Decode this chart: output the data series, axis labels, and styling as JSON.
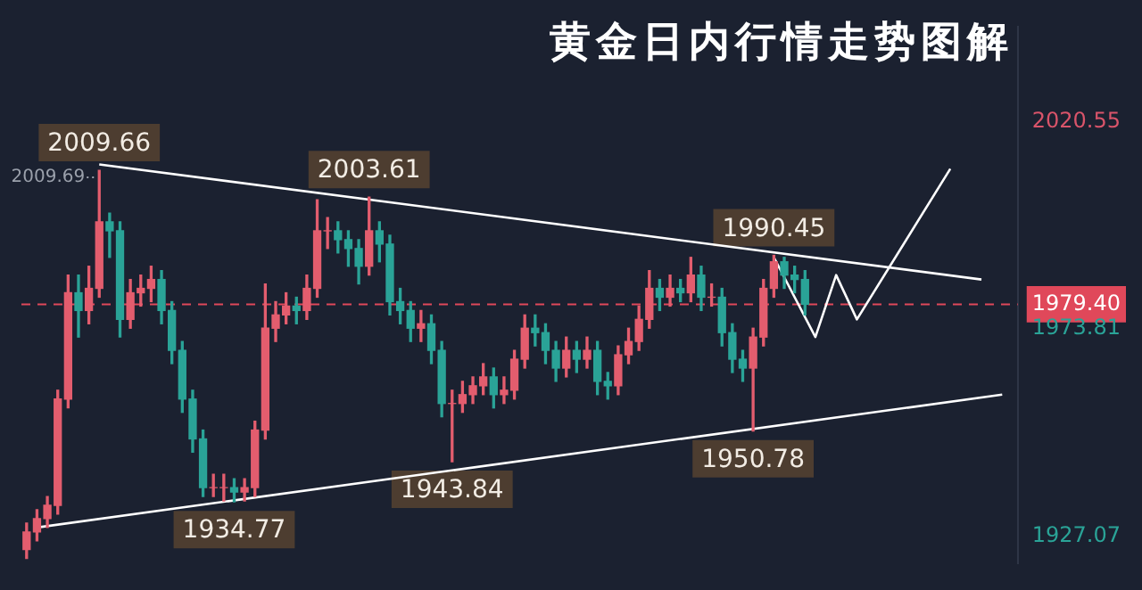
{
  "chart_data": {
    "type": "candlestick",
    "title": "黄金日内行情走势图解",
    "categories": [
      null,
      null,
      null,
      null,
      null,
      null,
      null,
      null,
      null,
      null,
      null,
      null,
      null,
      null,
      null,
      null,
      null,
      null,
      null,
      null,
      null,
      null,
      null,
      null,
      null,
      null,
      null,
      null,
      null,
      null,
      null,
      null,
      null,
      null,
      null,
      null,
      null,
      null,
      null,
      null,
      null,
      null,
      null,
      null,
      null,
      null,
      null,
      null,
      null,
      null,
      null,
      null,
      null,
      null,
      null,
      null,
      null,
      null,
      null,
      null,
      null,
      null,
      null,
      null,
      null,
      null,
      null,
      null,
      null,
      null,
      null,
      null,
      null,
      null,
      null,
      null,
      null,
      null,
      null,
      null,
      null,
      null,
      null,
      null,
      null,
      null,
      null,
      null,
      null,
      null,
      null,
      null,
      null,
      null,
      null,
      null
    ],
    "ohlc": [
      [
        1924,
        1930,
        1922,
        1928
      ],
      [
        1928,
        1933,
        1926,
        1931
      ],
      [
        1931,
        1936,
        1929,
        1934
      ],
      [
        1934,
        1960,
        1932,
        1958
      ],
      [
        1958,
        1986,
        1956,
        1982
      ],
      [
        1982,
        1986,
        1972,
        1978
      ],
      [
        1978,
        1988,
        1975,
        1983
      ],
      [
        1983,
        2009.66,
        1981,
        1998
      ],
      [
        1998,
        2000,
        1990,
        1996
      ],
      [
        1996,
        1998,
        1972,
        1976
      ],
      [
        1976,
        1985,
        1974,
        1982
      ],
      [
        1982,
        1986,
        1979,
        1983
      ],
      [
        1983,
        1988,
        1980,
        1985
      ],
      [
        1985,
        1987,
        1975,
        1978
      ],
      [
        1978,
        1980,
        1966,
        1969
      ],
      [
        1969,
        1971,
        1955,
        1958
      ],
      [
        1958,
        1960,
        1946,
        1949
      ],
      [
        1949,
        1951,
        1936,
        1938
      ],
      [
        1938,
        1941,
        1936,
        1938
      ],
      [
        1938,
        1941,
        1935,
        1938
      ],
      [
        1938,
        1940,
        1934.77,
        1937
      ],
      [
        1937,
        1940,
        1935,
        1938
      ],
      [
        1938,
        1953,
        1936,
        1951
      ],
      [
        1951,
        1984,
        1949,
        1974
      ],
      [
        1974,
        1980,
        1971,
        1977
      ],
      [
        1977,
        1982,
        1975,
        1979
      ],
      [
        1979,
        1981,
        1975,
        1978
      ],
      [
        1978,
        1986,
        1976,
        1983
      ],
      [
        1983,
        2003,
        1981,
        1996
      ],
      [
        1996,
        1999,
        1992,
        1996
      ],
      [
        1996,
        1998,
        1991,
        1994
      ],
      [
        1994,
        1996,
        1988,
        1992
      ],
      [
        1992,
        1994,
        1984,
        1988
      ],
      [
        1988,
        2003.61,
        1986,
        1996
      ],
      [
        1996,
        1998,
        1989,
        1993
      ],
      [
        1993,
        1995,
        1977,
        1980
      ],
      [
        1980,
        1983,
        1975,
        1978
      ],
      [
        1978,
        1980,
        1971,
        1974
      ],
      [
        1974,
        1978,
        1971,
        1975
      ],
      [
        1975,
        1977,
        1966,
        1969
      ],
      [
        1969,
        1971,
        1954,
        1957
      ],
      [
        1957,
        1960,
        1943.84,
        1957
      ],
      [
        1957,
        1962,
        1955,
        1959
      ],
      [
        1959,
        1963,
        1957,
        1961
      ],
      [
        1961,
        1966,
        1959,
        1963
      ],
      [
        1963,
        1965,
        1956,
        1959
      ],
      [
        1959,
        1963,
        1957,
        1960
      ],
      [
        1960,
        1969,
        1958,
        1967
      ],
      [
        1967,
        1977,
        1965,
        1974
      ],
      [
        1974,
        1977,
        1970,
        1973
      ],
      [
        1973,
        1975,
        1966,
        1969
      ],
      [
        1969,
        1971,
        1962,
        1965
      ],
      [
        1965,
        1972,
        1963,
        1969
      ],
      [
        1969,
        1971,
        1964,
        1967
      ],
      [
        1967,
        1972,
        1965,
        1969
      ],
      [
        1969,
        1971,
        1959,
        1962
      ],
      [
        1962,
        1964,
        1958,
        1961
      ],
      [
        1961,
        1970,
        1959,
        1968
      ],
      [
        1968,
        1974,
        1966,
        1971
      ],
      [
        1971,
        1979,
        1969,
        1976
      ],
      [
        1976,
        1987,
        1974,
        1983
      ],
      [
        1983,
        1985,
        1978,
        1981
      ],
      [
        1981,
        1986,
        1979,
        1983
      ],
      [
        1983,
        1985,
        1980,
        1982
      ],
      [
        1982,
        1990,
        1980,
        1986
      ],
      [
        1986,
        1988,
        1978,
        1981
      ],
      [
        1981,
        1984,
        1979,
        1981
      ],
      [
        1981,
        1983,
        1970,
        1973
      ],
      [
        1973,
        1975,
        1964,
        1967
      ],
      [
        1967,
        1969,
        1962,
        1965
      ],
      [
        1965,
        1974,
        1950.78,
        1972
      ],
      [
        1972,
        1985,
        1970,
        1983
      ],
      [
        1983,
        1990.45,
        1981,
        1989
      ],
      [
        1989,
        1990,
        1983,
        1986
      ],
      [
        1986,
        1988,
        1982,
        1985
      ],
      [
        1985,
        1987,
        1977,
        1979.4
      ],
      null,
      null,
      null,
      null,
      null,
      null,
      null,
      null,
      null,
      null,
      null,
      null,
      null,
      null,
      null,
      null,
      null,
      null,
      null,
      null
    ],
    "series": [
      {
        "type": "line",
        "color": "#ffffff",
        "values": [
          null,
          null,
          null,
          null,
          null,
          null,
          null,
          2011,
          null,
          null,
          null,
          null,
          null,
          null,
          null,
          null,
          null,
          null,
          null,
          null,
          null,
          null,
          null,
          null,
          null,
          null,
          null,
          null,
          null,
          null,
          null,
          null,
          null,
          null,
          null,
          null,
          null,
          null,
          null,
          null,
          null,
          null,
          null,
          null,
          null,
          null,
          null,
          null,
          null,
          null,
          null,
          null,
          null,
          null,
          null,
          null,
          null,
          null,
          null,
          null,
          null,
          null,
          null,
          null,
          null,
          null,
          null,
          null,
          null,
          null,
          null,
          null,
          null,
          null,
          null,
          null,
          null,
          null,
          null,
          null,
          null,
          null,
          null,
          null,
          null,
          null,
          null,
          null,
          null,
          null,
          null,
          null,
          1985,
          null,
          null,
          null
        ]
      },
      {
        "type": "line",
        "color": "#ffffff",
        "values": [
          null,
          1929,
          null,
          null,
          null,
          null,
          null,
          null,
          null,
          null,
          null,
          null,
          null,
          null,
          null,
          null,
          null,
          null,
          null,
          null,
          null,
          null,
          null,
          null,
          null,
          null,
          null,
          null,
          null,
          null,
          null,
          null,
          null,
          null,
          null,
          null,
          null,
          null,
          null,
          null,
          null,
          null,
          null,
          null,
          null,
          null,
          null,
          null,
          null,
          null,
          null,
          null,
          null,
          null,
          null,
          null,
          null,
          null,
          null,
          null,
          null,
          null,
          null,
          null,
          null,
          null,
          null,
          null,
          null,
          null,
          null,
          null,
          null,
          null,
          null,
          null,
          null,
          null,
          null,
          null,
          null,
          null,
          null,
          null,
          null,
          null,
          null,
          null,
          null,
          null,
          null,
          null,
          null,
          null,
          1959,
          null
        ]
      },
      {
        "type": "line",
        "color": "#ffffff",
        "values": [
          null,
          null,
          null,
          null,
          null,
          null,
          null,
          null,
          null,
          null,
          null,
          null,
          null,
          null,
          null,
          null,
          null,
          null,
          null,
          null,
          null,
          null,
          null,
          null,
          null,
          null,
          null,
          null,
          null,
          null,
          null,
          null,
          null,
          null,
          null,
          null,
          null,
          null,
          null,
          null,
          null,
          null,
          null,
          null,
          null,
          null,
          null,
          null,
          null,
          null,
          null,
          null,
          null,
          null,
          null,
          null,
          null,
          null,
          null,
          null,
          null,
          null,
          null,
          null,
          null,
          null,
          null,
          null,
          null,
          null,
          null,
          null,
          1990,
          null,
          null,
          null,
          1972,
          null,
          1986,
          null,
          1976,
          null,
          null,
          null,
          null,
          null,
          null,
          null,
          null,
          2010,
          null,
          null,
          null,
          null,
          null,
          null
        ]
      }
    ],
    "ylim": [
      1921,
      2042
    ],
    "yticks": [
      2020.55,
      {
        "value": 1979.4,
        "label": "1979.40"
      },
      1973.81,
      1927.07
    ],
    "ref_lines": [
      {
        "axis": "y",
        "value": 1979.4,
        "color": "#e0485a",
        "line_style": "dashed"
      }
    ],
    "annotations": [
      {
        "text": "2009.66",
        "y": 2009.66
      },
      "2009.69",
      {
        "text": "2003.61",
        "y": 2003.61
      },
      {
        "text": "1934.77",
        "y": 1934.77
      },
      {
        "text": "1943.84",
        "y": 1943.84
      },
      {
        "text": "1990.45",
        "y": 1990.45
      },
      {
        "text": "1950.78",
        "y": 1950.78
      }
    ],
    "tick_labels": "y"
  }
}
